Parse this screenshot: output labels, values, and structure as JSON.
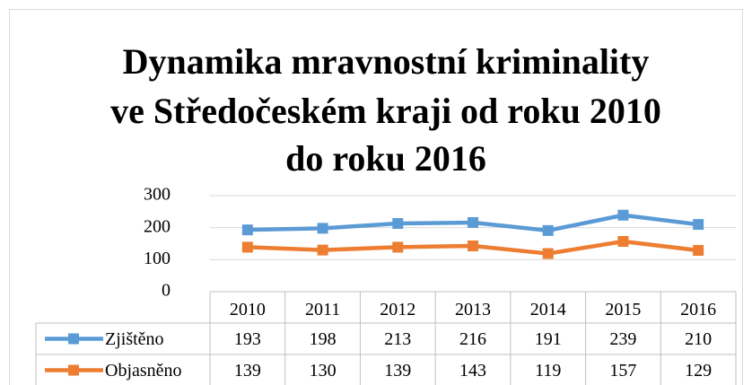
{
  "chart_data": {
    "type": "line",
    "title": [
      "Dynamika mravnostní kriminality",
      "ve Středočeském kraji od roku 2010",
      "do roku 2016"
    ],
    "categories": [
      "2010",
      "2011",
      "2012",
      "2013",
      "2014",
      "2015",
      "2016"
    ],
    "series": [
      {
        "name": "Zjištěno",
        "color": "#5b9bd5",
        "values": [
          193,
          198,
          213,
          216,
          191,
          239,
          210
        ]
      },
      {
        "name": "Objasněno",
        "color": "#ed7d31",
        "values": [
          139,
          130,
          139,
          143,
          119,
          157,
          129
        ]
      }
    ],
    "ylim": [
      0,
      300
    ],
    "yticks": [
      0,
      100,
      200,
      300
    ],
    "grid": true,
    "data_table": true
  }
}
